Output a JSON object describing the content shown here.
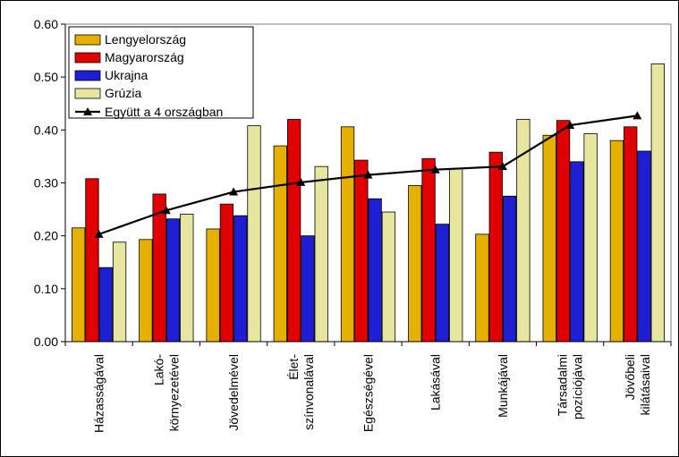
{
  "chart_data": {
    "type": "bar",
    "categories": [
      [
        "Házasságával"
      ],
      [
        "Lakó-",
        "környezetével"
      ],
      [
        "Jövedelmével"
      ],
      [
        "Élet-",
        "színvonalával"
      ],
      [
        "Egészségével"
      ],
      [
        "Lakásával"
      ],
      [
        "Munkájával"
      ],
      [
        "Társadalmi",
        "pozíciójával"
      ],
      [
        "Jövőbeli",
        "kilátásaival"
      ]
    ],
    "ylim": [
      0,
      0.6
    ],
    "y_ticks": [
      "0.00",
      "0.10",
      "0.20",
      "0.30",
      "0.40",
      "0.50",
      "0.60"
    ],
    "grid": false,
    "legend_position": "top-left",
    "series": [
      {
        "name": "Lengyelország",
        "color": "#E6B000",
        "values": [
          0.215,
          0.193,
          0.213,
          0.37,
          0.406,
          0.295,
          0.203,
          0.39,
          0.38
        ]
      },
      {
        "name": "Magyarország",
        "color": "#E00000",
        "values": [
          0.308,
          0.279,
          0.26,
          0.42,
          0.343,
          0.346,
          0.358,
          0.418,
          0.406
        ]
      },
      {
        "name": "Ukrajna",
        "color": "#1E1ED2",
        "values": [
          0.14,
          0.232,
          0.238,
          0.2,
          0.27,
          0.222,
          0.275,
          0.34,
          0.36
        ]
      }
    ],
    "series_extra": [
      {
        "name": "Grúzia",
        "color": "#E6E6A0",
        "values": [
          0.188,
          0.241,
          0.408,
          0.331,
          0.245,
          0.327,
          0.42,
          0.393,
          0.525
        ]
      }
    ],
    "line_series": {
      "name": "Együtt a 4 országban",
      "color": "#000000",
      "marker": "triangle",
      "values": [
        0.203,
        0.248,
        0.283,
        0.301,
        0.315,
        0.325,
        0.331,
        0.409,
        0.427
      ]
    }
  }
}
